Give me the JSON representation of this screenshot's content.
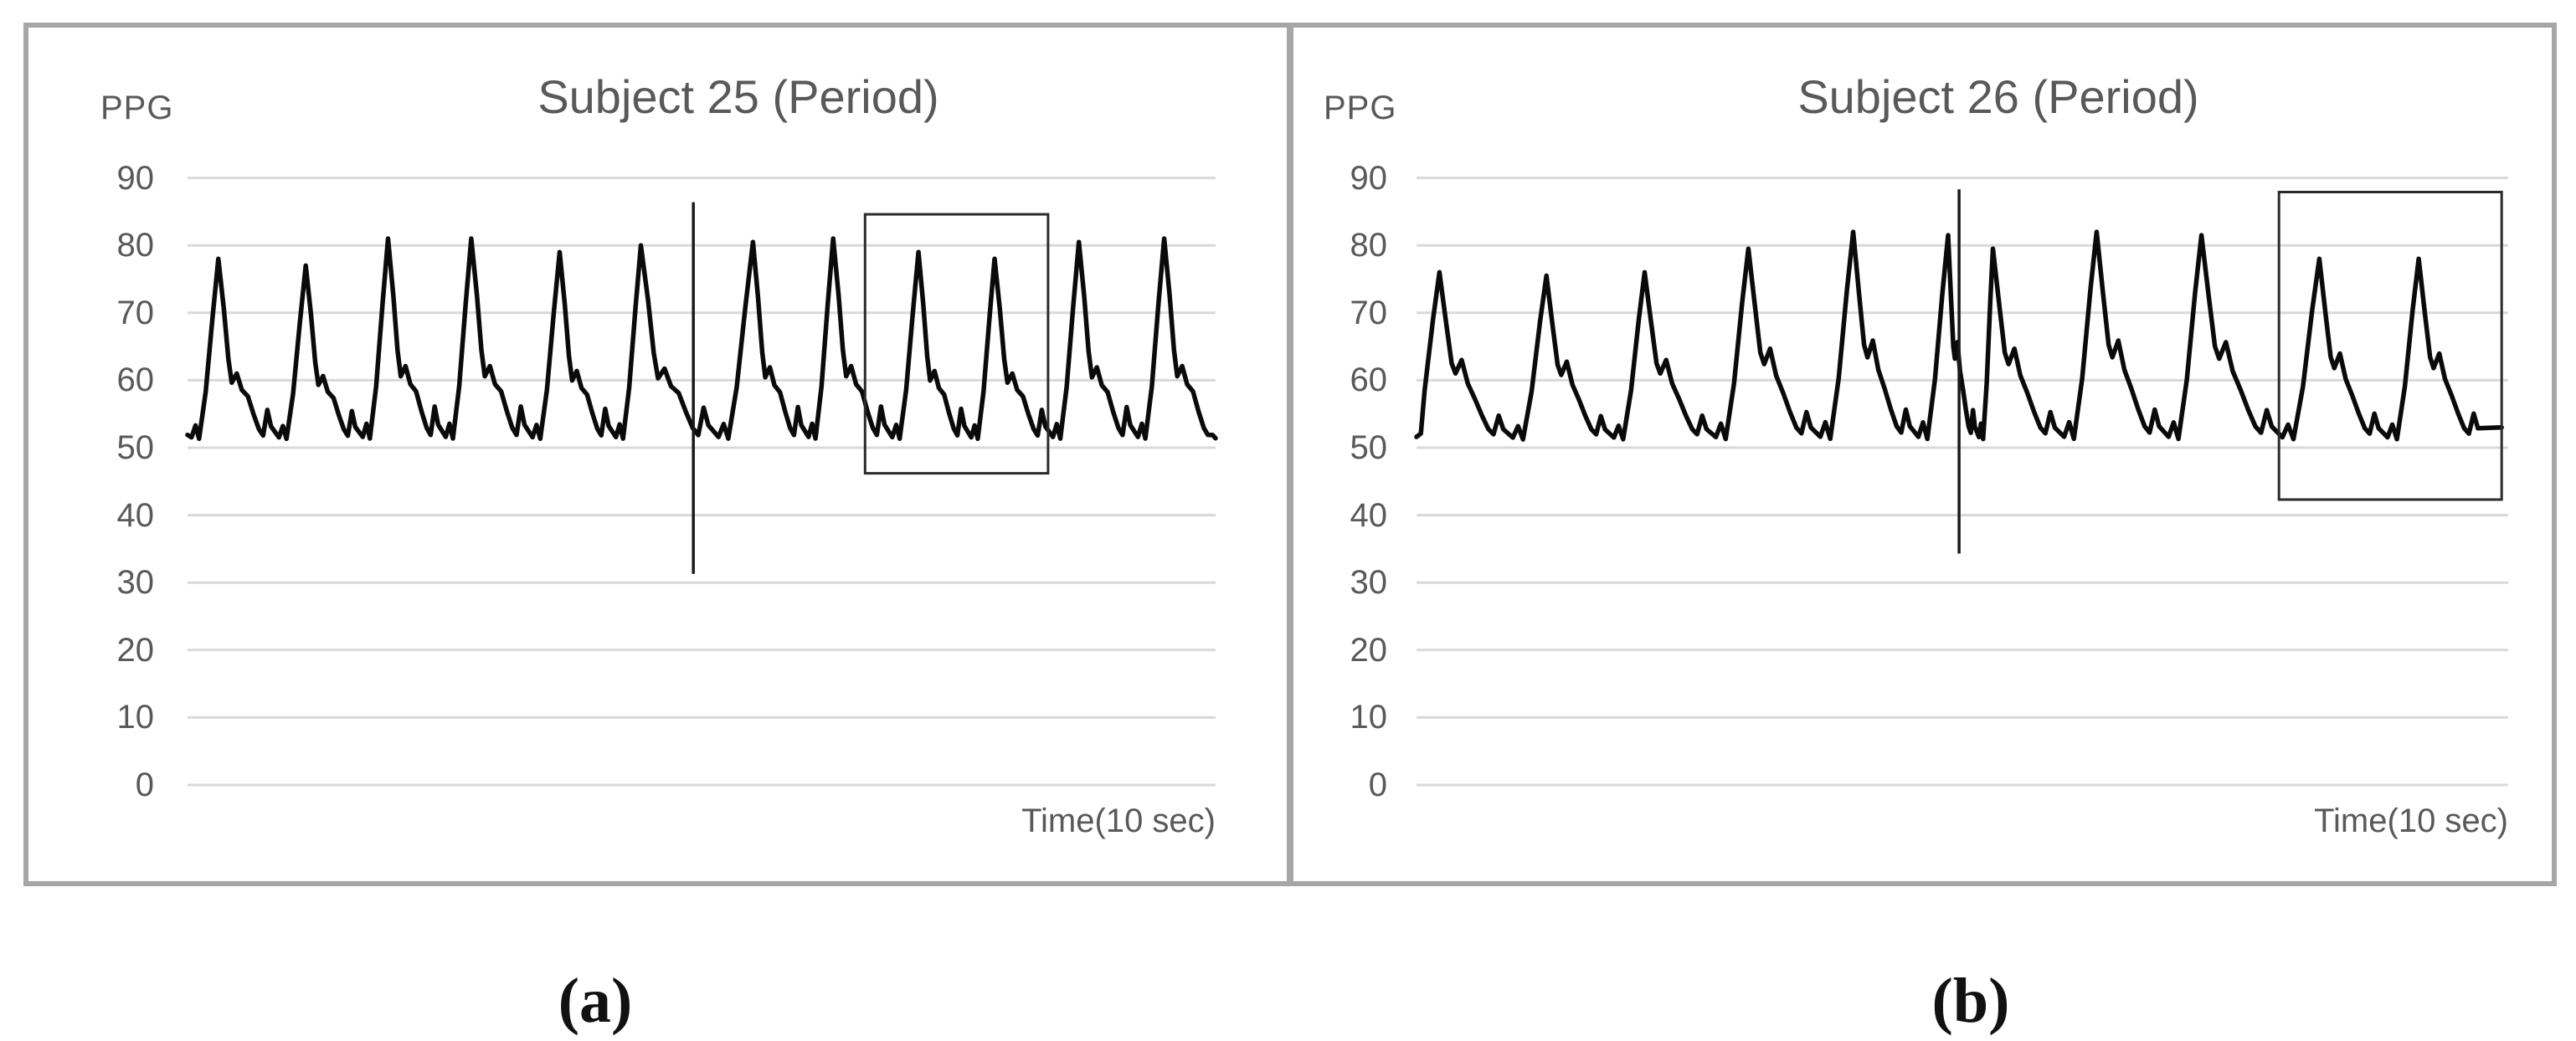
{
  "figure": {
    "border_color": "#a6a6a6",
    "divider_color": "#a6a6a6",
    "background": "#ffffff"
  },
  "captions": {
    "a": "(a)",
    "b": "(b)"
  },
  "chart_data": [
    {
      "type": "line",
      "title": "Subject 25 (Period)",
      "ylabel": "PPG",
      "xlabel": "Time(10 sec)",
      "y_ticks": [
        90,
        80,
        70,
        60,
        50,
        40,
        30,
        20,
        10,
        0
      ],
      "ylim": [
        0,
        96
      ],
      "xlim": [
        0,
        100
      ],
      "grid": true,
      "legend": "none",
      "line_color": "#0a0a0a",
      "grid_color": "#d9d9d9",
      "text_color": "#595959",
      "annotation_color": "#2b2b2b",
      "base": 51,
      "shape_period": 8.3,
      "shape_peak_dt": 2.55,
      "x_max_pulse": 99.3,
      "pulse_shape": [
        [
          0,
          0.02
        ],
        [
          0.38,
          0.085
        ],
        [
          0.72,
          0.012
        ],
        [
          1.35,
          0.27
        ],
        [
          2.0,
          0.68
        ],
        [
          2.55,
          1.0
        ],
        [
          3.08,
          0.72
        ],
        [
          3.5,
          0.45
        ],
        [
          3.82,
          0.32
        ],
        [
          4.3,
          0.37
        ],
        [
          4.78,
          0.28
        ],
        [
          5.35,
          0.245
        ],
        [
          5.9,
          0.145
        ],
        [
          6.4,
          0.065
        ],
        [
          6.8,
          0.03
        ],
        [
          7.2,
          0.17
        ],
        [
          7.55,
          0.08
        ]
      ],
      "pulse_peaks": {
        "x": [
          3.0,
          11.5,
          19.5,
          27.6,
          36.2,
          44.1,
          55.0,
          62.8,
          71.1,
          78.5,
          86.7,
          95.0
        ],
        "h": [
          78,
          77,
          81,
          81,
          79,
          80,
          80.5,
          81,
          79,
          78,
          80.5,
          81
        ]
      },
      "lead_points": [
        [
          0,
          51.9
        ]
      ],
      "tail_points": [
        [
          99.7,
          51.9
        ],
        [
          100,
          51.4
        ]
      ],
      "marker_line": {
        "x": 49.2,
        "y_top": 86.4,
        "y_bottom": 31.3
      },
      "annotation_box": {
        "x0": 65.9,
        "x1": 83.7,
        "y0": 46.2,
        "y1": 84.6
      }
    },
    {
      "type": "line",
      "title": "Subject 26 (Period)",
      "ylabel": "PPG",
      "xlabel": "Time(10 sec)",
      "y_ticks": [
        90,
        80,
        70,
        60,
        50,
        40,
        30,
        20,
        10,
        0
      ],
      "ylim": [
        0,
        96
      ],
      "xlim": [
        0,
        100
      ],
      "grid": true,
      "legend": "none",
      "line_color": "#0a0a0a",
      "grid_color": "#d9d9d9",
      "text_color": "#595959",
      "annotation_color": "#2b2b2b",
      "base": 51,
      "shape_period": 8.3,
      "shape_peak_dt": 2.6,
      "x_max_pulse": 99.0,
      "pulse_shape": [
        [
          0,
          0.02
        ],
        [
          0.4,
          0.09
        ],
        [
          0.78,
          0.01
        ],
        [
          1.45,
          0.3
        ],
        [
          2.1,
          0.72
        ],
        [
          2.6,
          1.0
        ],
        [
          3.12,
          0.7
        ],
        [
          3.55,
          0.46
        ],
        [
          3.85,
          0.4
        ],
        [
          4.32,
          0.48
        ],
        [
          4.8,
          0.34
        ],
        [
          5.35,
          0.25
        ],
        [
          5.9,
          0.15
        ],
        [
          6.4,
          0.07
        ],
        [
          6.8,
          0.04
        ],
        [
          7.2,
          0.15
        ],
        [
          7.55,
          0.07
        ]
      ],
      "pulse_peaks": {
        "x": [
          2.1,
          11.9,
          20.9,
          30.4,
          40.0,
          48.7,
          52.8,
          62.3,
          71.9,
          82.7,
          91.8
        ],
        "h": [
          76,
          75.5,
          76,
          79.5,
          82,
          81.5,
          79.5,
          82,
          81.5,
          78,
          78
        ]
      },
      "lead_points": [
        [
          0,
          51.6
        ],
        [
          0.4,
          52.1
        ]
      ],
      "tail_points": [
        [
          99.4,
          53.0
        ]
      ],
      "marker_line": {
        "x": 49.7,
        "y_top": 88.3,
        "y_bottom": 34.3
      },
      "annotation_box": {
        "x0": 79.0,
        "x1": 99.4,
        "y0": 42.3,
        "y1": 87.9
      }
    }
  ]
}
